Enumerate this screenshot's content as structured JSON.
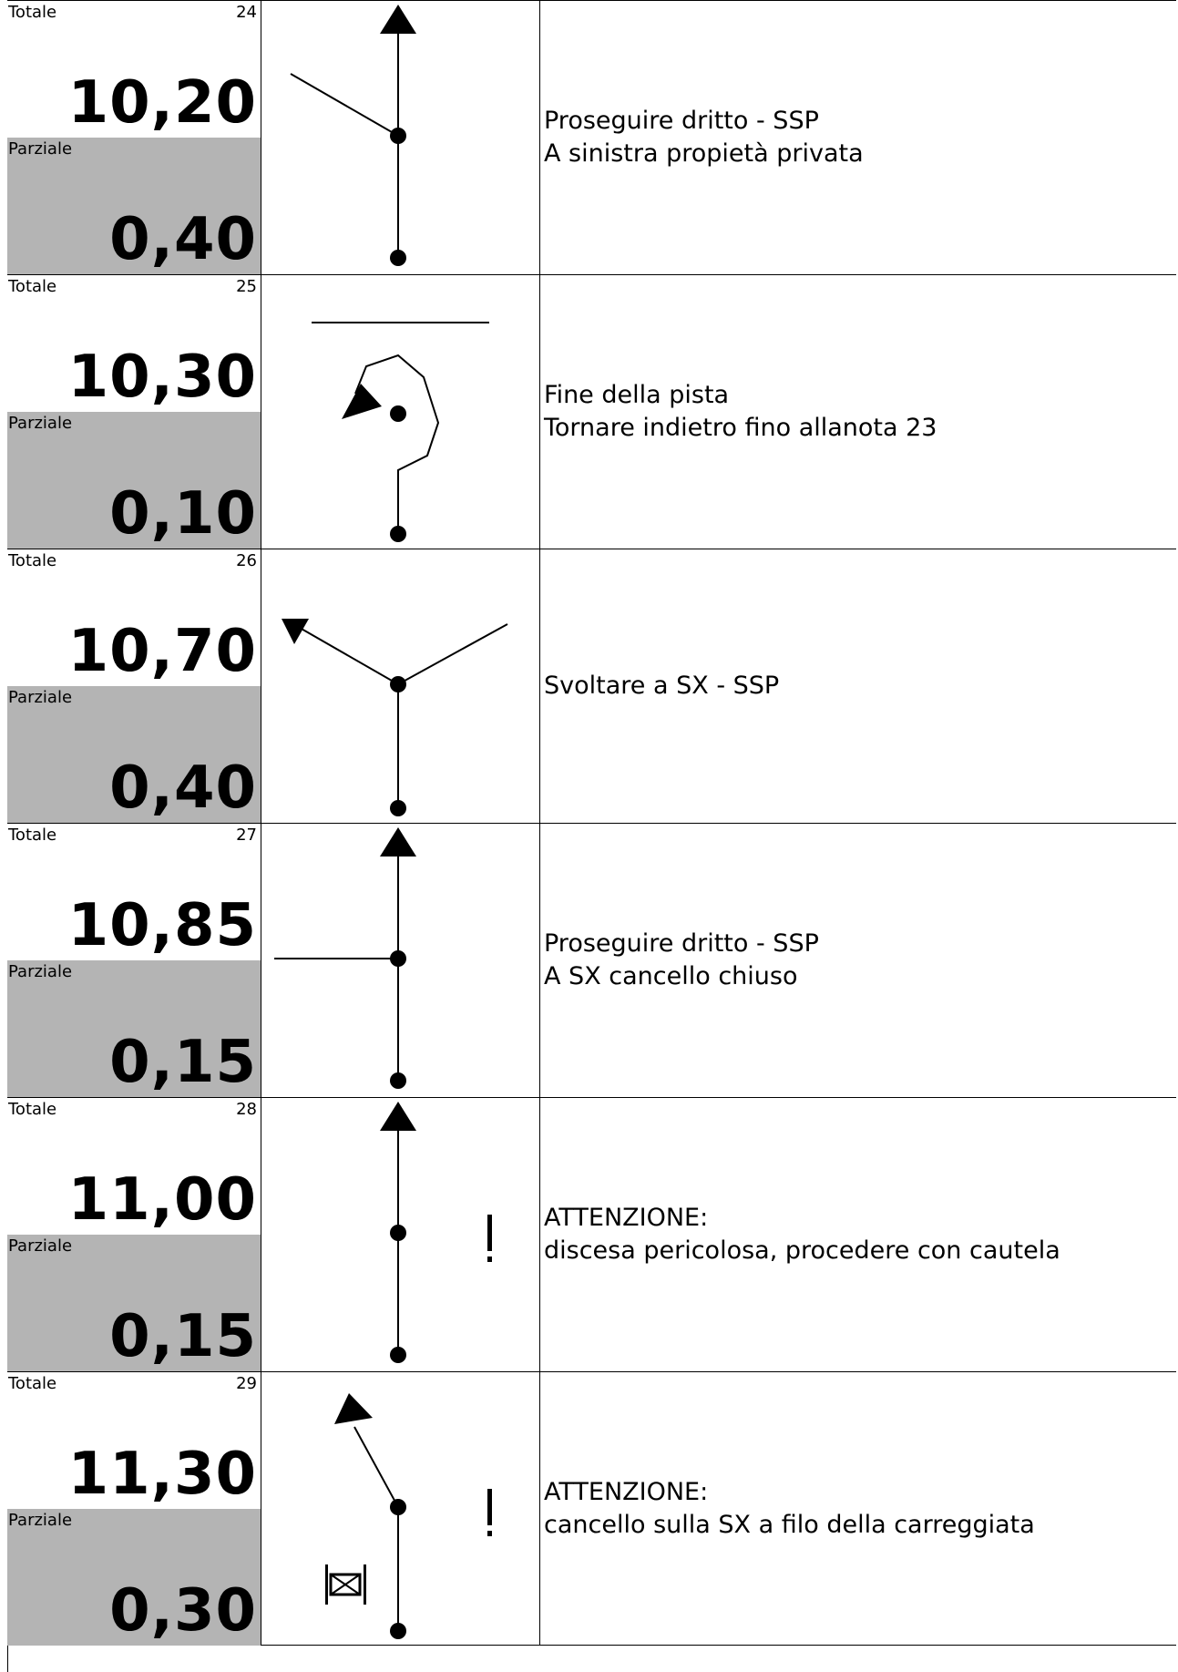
{
  "labels": {
    "total": "Totale",
    "partial": "Parziale"
  },
  "rows": [
    {
      "num": "24",
      "total": "10,20",
      "partial": "0,40",
      "diagram": "straight-right-private-icon",
      "lines": [
        "Proseguire dritto - SSP",
        "A sinistra propietà privata"
      ]
    },
    {
      "num": "25",
      "total": "10,30",
      "partial": "0,10",
      "diagram": "dead-end-turnaround-icon",
      "lines": [
        "Fine della pista",
        "Tornare indietro fino allanota 23"
      ]
    },
    {
      "num": "26",
      "total": "10,70",
      "partial": "0,40",
      "diagram": "fork-left-icon",
      "lines": [
        "Svoltare a SX - SSP"
      ]
    },
    {
      "num": "27",
      "total": "10,85",
      "partial": "0,15",
      "diagram": "straight-left-branch-icon",
      "lines": [
        "Proseguire dritto - SSP",
        "A SX cancello chiuso"
      ]
    },
    {
      "num": "28",
      "total": "11,00",
      "partial": "0,15",
      "diagram": "straight-danger-icon",
      "lines": [
        "ATTENZIONE:",
        "discesa pericolosa, procedere con cautela"
      ]
    },
    {
      "num": "29",
      "total": "11,30",
      "partial": "0,30",
      "diagram": "bear-left-gate-danger-icon",
      "lines": [
        "ATTENZIONE:",
        "cancello sulla SX a filo della carreggiata"
      ]
    }
  ]
}
